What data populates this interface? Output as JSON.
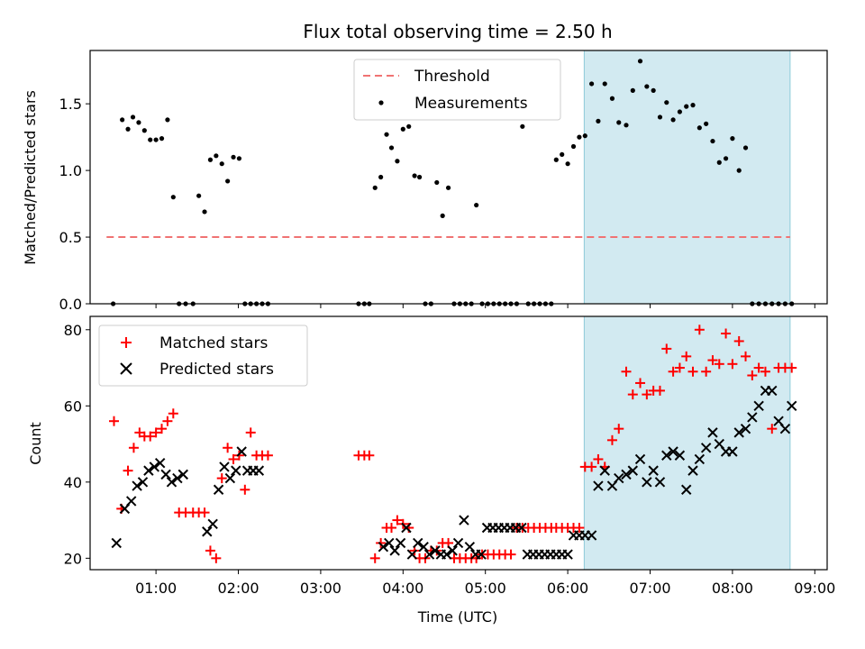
{
  "chart_data": [
    {
      "type": "scatter",
      "title": "Flux total observing time = 2.50 h",
      "ylabel": "Matched/Predicted stars",
      "xlabel": "",
      "xlim": [
        0.2,
        9.15
      ],
      "ylim": [
        0,
        1.9
      ],
      "yticks": [
        "0.0",
        "0.5",
        "1.0",
        "1.5"
      ],
      "ytick_values": [
        0,
        0.5,
        1.0,
        1.5
      ],
      "shaded_region": [
        6.2,
        8.7
      ],
      "legend": {
        "position": "top-center",
        "entries": [
          "Threshold",
          "Measurements"
        ]
      },
      "series": [
        {
          "name": "Threshold",
          "kind": "dashed-line",
          "x": [
            0.4,
            8.7
          ],
          "y": [
            0.5,
            0.5
          ],
          "color": "#f07373"
        },
        {
          "name": "Measurements",
          "kind": "points",
          "color": "#000000",
          "x": [
            0.48,
            0.59,
            0.66,
            0.72,
            0.79,
            0.86,
            0.93,
            1.0,
            1.07,
            1.14,
            1.21,
            1.28,
            1.36,
            1.45,
            1.52,
            1.59,
            1.66,
            1.73,
            1.8,
            1.87,
            1.94,
            2.01,
            2.08,
            2.15,
            2.22,
            2.29,
            2.36,
            3.46,
            3.53,
            3.59,
            3.66,
            3.73,
            3.8,
            3.86,
            3.93,
            4.0,
            4.07,
            4.14,
            4.2,
            4.27,
            4.34,
            4.41,
            4.48,
            4.55,
            4.62,
            4.69,
            4.76,
            4.83,
            4.89,
            4.96,
            5.03,
            5.1,
            5.17,
            5.24,
            5.31,
            5.38,
            5.45,
            5.52,
            5.59,
            5.66,
            5.73,
            5.8,
            5.86,
            5.93,
            6.0,
            6.07,
            6.14,
            6.21,
            6.29,
            6.37,
            6.45,
            6.54,
            6.62,
            6.71,
            6.79,
            6.88,
            6.96,
            7.04,
            7.12,
            7.2,
            7.28,
            7.36,
            7.44,
            7.52,
            7.6,
            7.68,
            7.76,
            7.84,
            7.92,
            8.0,
            8.08,
            8.16,
            8.24,
            8.32,
            8.4,
            8.48,
            8.56,
            8.64,
            8.72
          ],
          "y": [
            0,
            1.38,
            1.31,
            1.4,
            1.36,
            1.3,
            1.23,
            1.23,
            1.24,
            1.38,
            0.8,
            0,
            0,
            0,
            0.81,
            0.69,
            1.08,
            1.11,
            1.05,
            0.92,
            1.1,
            1.09,
            0,
            0,
            0,
            0,
            0,
            0,
            0,
            0,
            0.87,
            0.95,
            1.27,
            1.17,
            1.07,
            1.31,
            1.33,
            0.96,
            0.95,
            0,
            0,
            0.91,
            0.66,
            0.87,
            0,
            0,
            0,
            0,
            0.74,
            0,
            0,
            0,
            0,
            0,
            0,
            0,
            1.33,
            0,
            0,
            0,
            0,
            0,
            1.08,
            1.12,
            1.05,
            1.18,
            1.25,
            1.26,
            1.65,
            1.37,
            1.65,
            1.54,
            1.36,
            1.34,
            1.6,
            1.82,
            1.63,
            1.6,
            1.4,
            1.51,
            1.38,
            1.44,
            1.48,
            1.49,
            1.32,
            1.35,
            1.22,
            1.06,
            1.09,
            1.24,
            1.0,
            1.17,
            0,
            0,
            0,
            0,
            0,
            0,
            0
          ]
        }
      ]
    },
    {
      "type": "scatter",
      "title": "",
      "ylabel": "Count",
      "xlabel": "Time (UTC)",
      "xlim": [
        0.2,
        9.15
      ],
      "ylim": [
        17,
        83.5
      ],
      "yticks": [
        "20",
        "40",
        "60",
        "80"
      ],
      "ytick_values": [
        20,
        40,
        60,
        80
      ],
      "xticks": [
        "01:00",
        "02:00",
        "03:00",
        "04:00",
        "05:00",
        "06:00",
        "07:00",
        "08:00",
        "09:00"
      ],
      "xtick_values": [
        1,
        2,
        3,
        4,
        5,
        6,
        7,
        8,
        9
      ],
      "shaded_region": [
        6.2,
        8.7
      ],
      "legend": {
        "position": "top-left",
        "entries": [
          "Matched stars",
          "Predicted stars"
        ]
      },
      "series": [
        {
          "name": "Matched stars",
          "marker": "plus",
          "color": "#ff0000",
          "x": [
            0.49,
            0.58,
            0.66,
            0.73,
            0.8,
            0.86,
            0.93,
            1.0,
            1.07,
            1.14,
            1.21,
            1.28,
            1.36,
            1.45,
            1.52,
            1.59,
            1.66,
            1.73,
            1.8,
            1.87,
            1.94,
            2.01,
            2.08,
            2.15,
            2.22,
            2.29,
            2.36,
            3.46,
            3.53,
            3.59,
            3.66,
            3.73,
            3.8,
            3.86,
            3.93,
            4.0,
            4.07,
            4.14,
            4.2,
            4.27,
            4.34,
            4.41,
            4.48,
            4.55,
            4.62,
            4.69,
            4.76,
            4.83,
            4.89,
            4.96,
            5.03,
            5.1,
            5.17,
            5.24,
            5.31,
            5.38,
            5.45,
            5.52,
            5.59,
            5.66,
            5.73,
            5.8,
            5.86,
            5.93,
            6.0,
            6.07,
            6.14,
            6.21,
            6.29,
            6.37,
            6.45,
            6.54,
            6.62,
            6.71,
            6.79,
            6.88,
            6.96,
            7.04,
            7.12,
            7.2,
            7.28,
            7.36,
            7.44,
            7.52,
            7.6,
            7.68,
            7.76,
            7.84,
            7.92,
            8.0,
            8.08,
            8.16,
            8.24,
            8.32,
            8.4,
            8.48,
            8.56,
            8.64,
            8.72
          ],
          "y": [
            56,
            33,
            43,
            49,
            53,
            52,
            52,
            53,
            54,
            56,
            58,
            32,
            32,
            32,
            32,
            32,
            22,
            20,
            41,
            49,
            46,
            47,
            38,
            53,
            47,
            47,
            47,
            47,
            47,
            47,
            20,
            24,
            28,
            28,
            30,
            29,
            28,
            22,
            20,
            20,
            22,
            22,
            24,
            24,
            20,
            20,
            20,
            20,
            20,
            21,
            21,
            21,
            21,
            21,
            21,
            28,
            28,
            28,
            28,
            28,
            28,
            28,
            28,
            28,
            28,
            28,
            28,
            44,
            44,
            46,
            44,
            51,
            54,
            69,
            63,
            66,
            63,
            64,
            64,
            75,
            69,
            70,
            73,
            69,
            80,
            69,
            72,
            71,
            79,
            71,
            77,
            73,
            68,
            70,
            69,
            54,
            70,
            70,
            70
          ]
        },
        {
          "name": "Predicted stars",
          "marker": "x",
          "color": "#000000",
          "x": [
            0.52,
            0.62,
            0.7,
            0.77,
            0.84,
            0.91,
            0.98,
            1.05,
            1.12,
            1.19,
            1.26,
            1.33,
            1.62,
            1.69,
            1.76,
            1.83,
            1.9,
            1.97,
            2.04,
            2.11,
            2.18,
            2.25,
            3.76,
            3.83,
            3.9,
            3.97,
            4.04,
            4.11,
            4.18,
            4.25,
            4.32,
            4.39,
            4.46,
            4.53,
            4.6,
            4.67,
            4.74,
            4.81,
            4.88,
            4.95,
            5.02,
            5.09,
            5.16,
            5.23,
            5.3,
            5.37,
            5.44,
            5.51,
            5.58,
            5.65,
            5.72,
            5.79,
            5.86,
            5.93,
            6.0,
            6.07,
            6.14,
            6.21,
            6.29,
            6.37,
            6.45,
            6.54,
            6.62,
            6.71,
            6.79,
            6.88,
            6.96,
            7.04,
            7.12,
            7.2,
            7.28,
            7.36,
            7.44,
            7.52,
            7.6,
            7.68,
            7.76,
            7.84,
            7.92,
            8.0,
            8.08,
            8.16,
            8.24,
            8.32,
            8.4,
            8.48,
            8.56,
            8.64,
            8.72
          ],
          "y": [
            24,
            33,
            35,
            39,
            40,
            43,
            44,
            45,
            42,
            40,
            41,
            42,
            27,
            29,
            38,
            44,
            41,
            43,
            48,
            43,
            43,
            43,
            23,
            24,
            22,
            24,
            28,
            21,
            24,
            23,
            21,
            22,
            21,
            21,
            22,
            24,
            30,
            23,
            21,
            21,
            28,
            28,
            28,
            28,
            28,
            28,
            28,
            21,
            21,
            21,
            21,
            21,
            21,
            21,
            21,
            26,
            26,
            26,
            26,
            39,
            43,
            39,
            41,
            42,
            43,
            46,
            40,
            43,
            40,
            47,
            48,
            47,
            38,
            43,
            46,
            49,
            53,
            50,
            48,
            48,
            53,
            54,
            57,
            60,
            64,
            64,
            56,
            54,
            60
          ]
        }
      ]
    }
  ]
}
